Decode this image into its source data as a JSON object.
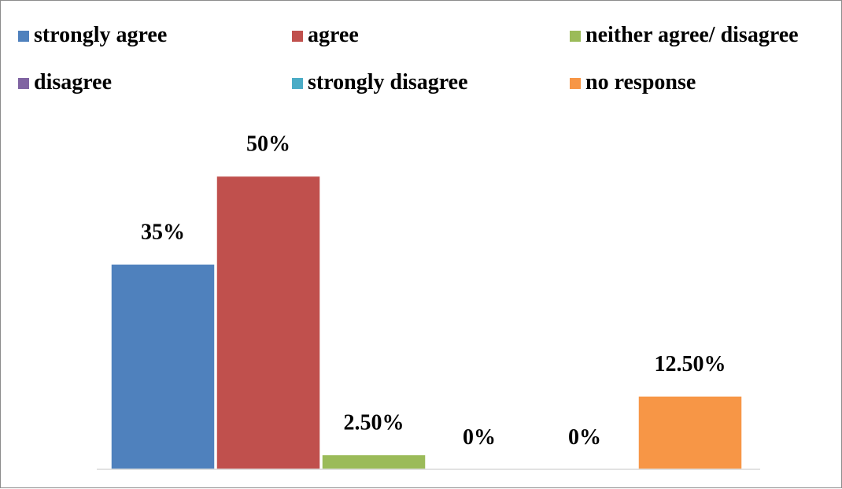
{
  "chart_data": {
    "type": "bar",
    "categories": [
      "strongly agree",
      "agree",
      "neither agree/ disagree",
      "disagree",
      "strongly disagree",
      "no response"
    ],
    "values": [
      35,
      50,
      2.5,
      0,
      0,
      12.5
    ],
    "value_labels": [
      "35%",
      "50%",
      "2.50%",
      "0%",
      "0%",
      "12.50%"
    ],
    "colors": [
      "#4f81bd",
      "#c0504d",
      "#9bbb59",
      "#8064a2",
      "#4bacc6",
      "#f79646"
    ],
    "title": "",
    "xlabel": "",
    "ylabel": "",
    "ylim": [
      0,
      60
    ],
    "grid": false,
    "legend_position": "top"
  }
}
